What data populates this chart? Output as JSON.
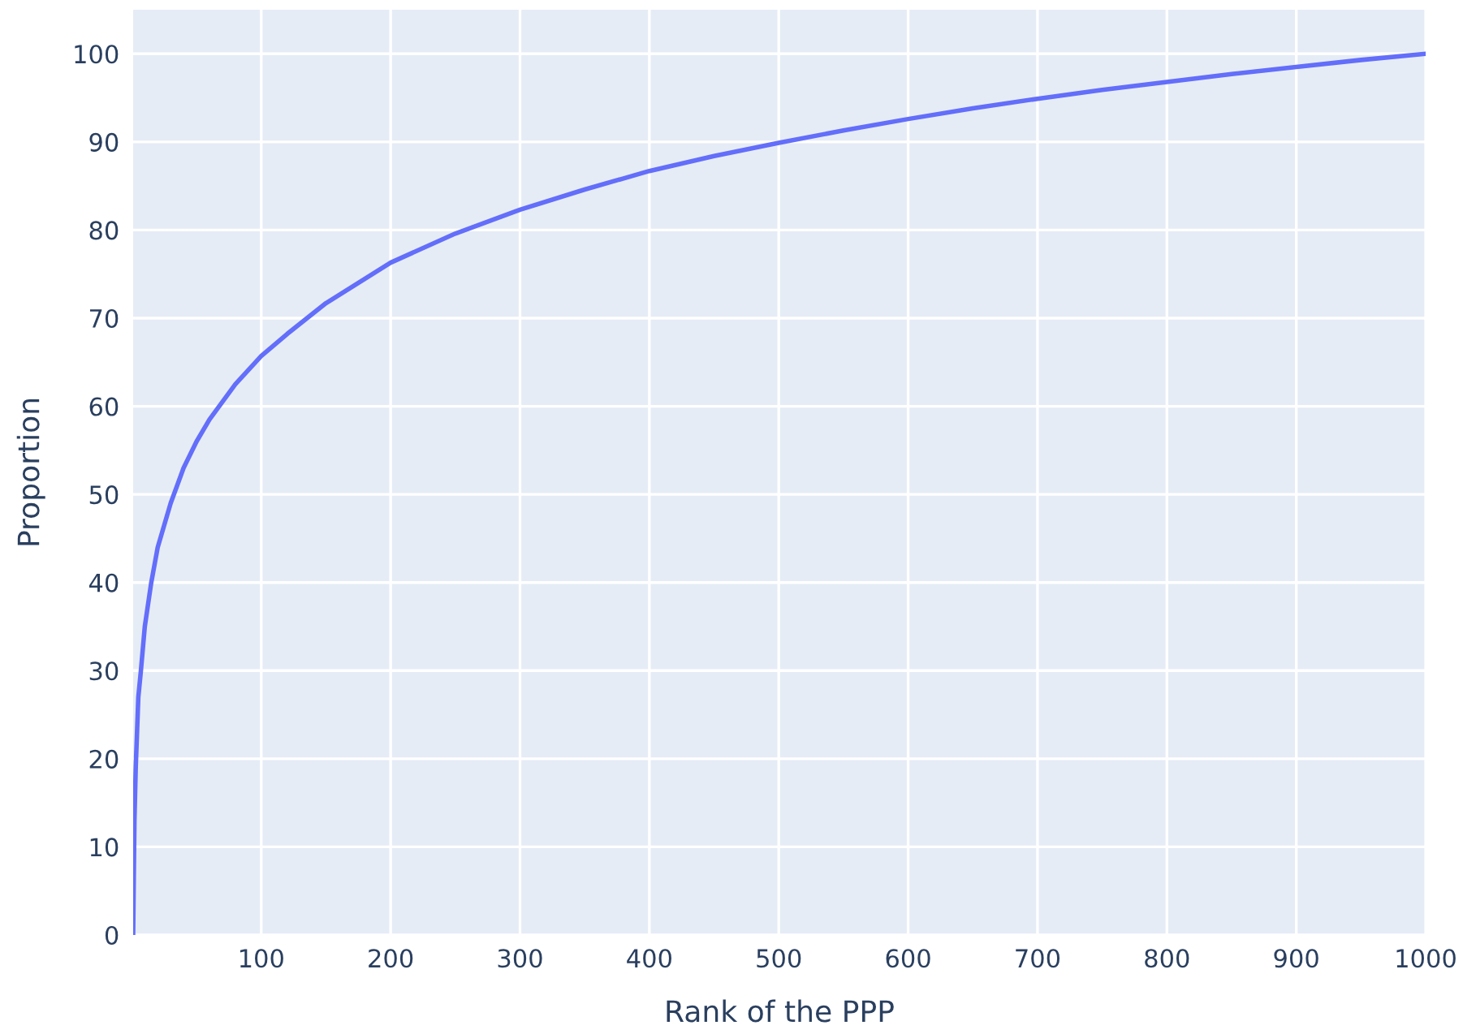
{
  "chart_data": {
    "type": "line",
    "xlabel": "Rank of the PPP",
    "ylabel": "Proportion",
    "series": [
      {
        "color": "#636efa",
        "x": [
          1,
          2,
          3,
          4,
          5,
          7,
          10,
          15,
          20,
          30,
          40,
          50,
          60,
          70,
          80,
          100,
          120,
          150,
          200,
          250,
          300,
          350,
          400,
          450,
          500,
          550,
          600,
          650,
          700,
          750,
          800,
          850,
          900,
          950,
          1000
        ],
        "values": [
          0,
          13,
          19,
          23,
          27,
          30,
          35,
          40,
          44,
          49,
          53,
          56,
          58.5,
          60.5,
          62.5,
          65.7,
          68.2,
          71.7,
          76.3,
          79.6,
          82.3,
          84.6,
          86.7,
          88.4,
          89.9,
          91.3,
          92.6,
          93.8,
          94.9,
          95.9,
          96.8,
          97.7,
          98.5,
          99.3,
          100
        ]
      }
    ],
    "xlim": [
      1,
      1000
    ],
    "ylim": [
      0,
      105
    ],
    "xticks": [
      100,
      200,
      300,
      400,
      500,
      600,
      700,
      800,
      900,
      1000
    ],
    "yticks": [
      0,
      10,
      20,
      30,
      40,
      50,
      60,
      70,
      80,
      90,
      100
    ],
    "grid": true,
    "marker": "none",
    "line_style": "solid",
    "legend": false
  }
}
